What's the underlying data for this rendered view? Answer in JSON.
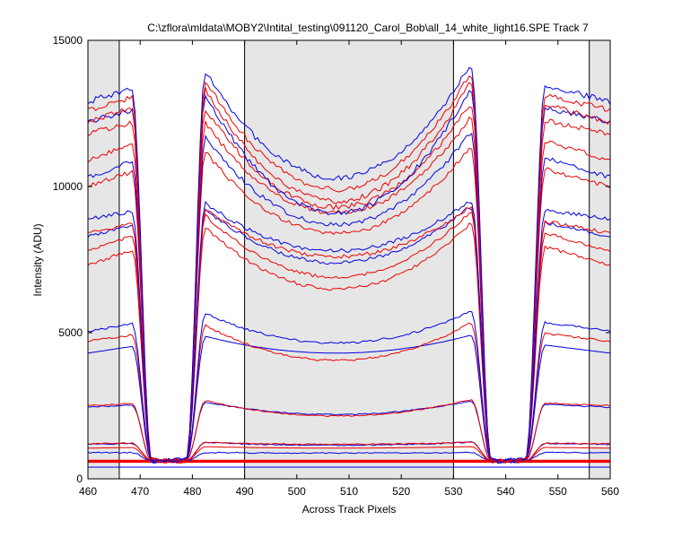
{
  "chart_data": {
    "type": "line",
    "title": "C:\\zflora\\mldata\\MOBY2\\Intital_testing\\091120_Carol_Bob\\all_14_white_light16.SPE    Track 7",
    "xlabel": "Across Track Pixels",
    "ylabel": "Intensity (ADU)",
    "xlim": [
      460,
      560
    ],
    "ylim": [
      0,
      15000
    ],
    "xticks": [
      "460",
      "470",
      "480",
      "490",
      "500",
      "510",
      "520",
      "530",
      "540",
      "550",
      "560"
    ],
    "yticks": [
      "0",
      "5000",
      "10000",
      "15000"
    ],
    "grid": false,
    "shaded_regions": [
      [
        460,
        466
      ],
      [
        490,
        530
      ],
      [
        556,
        560
      ]
    ],
    "vertical_lines": [
      466,
      490,
      530,
      556
    ],
    "colors": {
      "shade": "#e6e6e6",
      "blue": "#0000e0",
      "red": "#ee0000",
      "axes": "#000000"
    },
    "trough_centers": [
      475.5,
      540.5
    ],
    "series": [
      {
        "color": "blue",
        "base": 400,
        "edge": 400,
        "center": 400,
        "floor": 400
      },
      {
        "color": "red",
        "base": 580,
        "edge": 580,
        "center": 580,
        "floor": 580
      },
      {
        "color": "red",
        "base": 620,
        "edge": 620,
        "center": 620,
        "floor": 620
      },
      {
        "color": "blue",
        "base": 900,
        "edge": 900,
        "center": 880,
        "floor": 620
      },
      {
        "color": "red",
        "base": 1050,
        "edge": 1100,
        "center": 1050,
        "floor": 620
      },
      {
        "color": "blue",
        "base": 1180,
        "edge": 1250,
        "center": 1150,
        "floor": 620
      },
      {
        "color": "red",
        "base": 1200,
        "edge": 1250,
        "center": 1180,
        "floor": 620
      },
      {
        "color": "blue",
        "base": 2450,
        "edge": 2650,
        "center": 2200,
        "floor": 620
      },
      {
        "color": "red",
        "base": 2500,
        "edge": 2700,
        "center": 2150,
        "floor": 620
      },
      {
        "color": "blue",
        "base": 4300,
        "edge": 4900,
        "center": 4300,
        "floor": 620
      },
      {
        "color": "red",
        "base": 4700,
        "edge": 5300,
        "center": 4050,
        "floor": 620
      },
      {
        "color": "blue",
        "base": 5050,
        "edge": 5700,
        "center": 4650,
        "floor": 620
      },
      {
        "color": "red",
        "base": 7300,
        "edge": 8700,
        "center": 6500,
        "floor": 620
      },
      {
        "color": "red",
        "base": 7800,
        "edge": 9100,
        "center": 6900,
        "floor": 620
      },
      {
        "color": "blue",
        "base": 8300,
        "edge": 9300,
        "center": 7400,
        "floor": 620
      },
      {
        "color": "red",
        "base": 8400,
        "edge": 9300,
        "center": 7600,
        "floor": 620
      },
      {
        "color": "blue",
        "base": 8900,
        "edge": 9500,
        "center": 7800,
        "floor": 620
      },
      {
        "color": "red",
        "base": 10000,
        "edge": 11300,
        "center": 8400,
        "floor": 620
      },
      {
        "color": "blue",
        "base": 10300,
        "edge": 11800,
        "center": 8700,
        "floor": 620
      },
      {
        "color": "red",
        "base": 10900,
        "edge": 12300,
        "center": 9100,
        "floor": 620
      },
      {
        "color": "red",
        "base": 11800,
        "edge": 12800,
        "center": 9300,
        "floor": 620
      },
      {
        "color": "blue",
        "base": 12200,
        "edge": 13300,
        "center": 9100,
        "floor": 620
      },
      {
        "color": "red",
        "base": 12200,
        "edge": 13500,
        "center": 9500,
        "floor": 620
      },
      {
        "color": "red",
        "base": 12600,
        "edge": 13800,
        "center": 9900,
        "floor": 620
      },
      {
        "color": "blue",
        "base": 12900,
        "edge": 14100,
        "center": 10300,
        "floor": 620
      }
    ]
  }
}
